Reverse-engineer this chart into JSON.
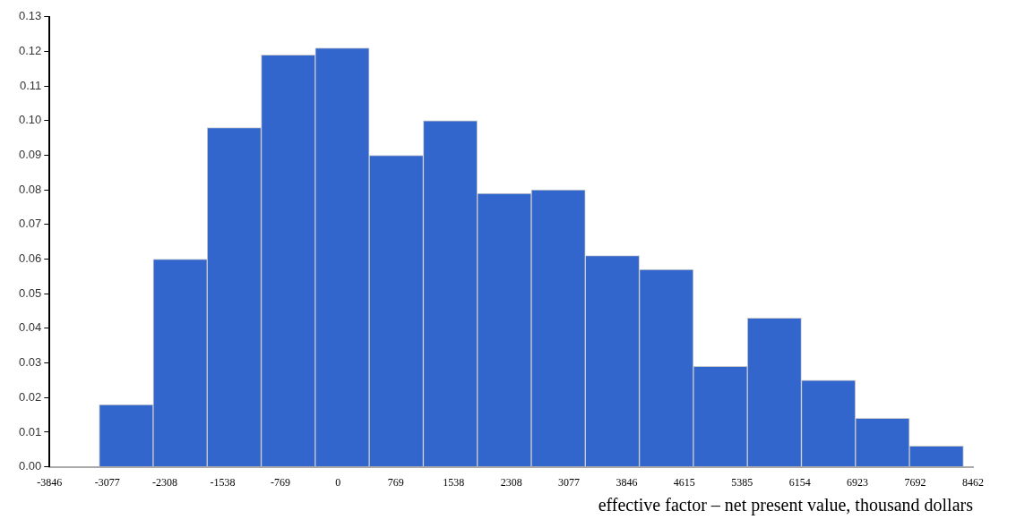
{
  "chart_data": {
    "type": "histogram",
    "xlabel": "effective factor – net present value, thousand dollars",
    "bins": [
      -3185,
      -2465,
      -1745,
      -1025,
      -305,
      415,
      1135,
      1855,
      2575,
      3295,
      4015,
      4735,
      5455,
      6175,
      6895,
      7615,
      8335
    ],
    "values": [
      0.018,
      0.06,
      0.098,
      0.119,
      0.121,
      0.09,
      0.1,
      0.079,
      0.08,
      0.061,
      0.057,
      0.029,
      0.043,
      0.025,
      0.014,
      0.006
    ],
    "color": "#3366cc",
    "xlim": [
      -3846,
      8462
    ],
    "xticks": [
      -3846,
      -3077,
      -2308,
      -1538,
      -769,
      0,
      769,
      1538,
      2308,
      3077,
      3846,
      4615,
      5385,
      6154,
      6923,
      7692,
      8462
    ],
    "ylim": [
      0,
      0.13
    ],
    "yticks": [
      {
        "value": 0,
        "label": "0.00"
      },
      {
        "value": 0.01,
        "label": "0.01"
      },
      {
        "value": 0.02,
        "label": "0.02"
      },
      {
        "value": 0.03,
        "label": "0.03"
      },
      {
        "value": 0.04,
        "label": "0.04"
      },
      {
        "value": 0.05,
        "label": "0.05"
      },
      {
        "value": 0.06,
        "label": "0.06"
      },
      {
        "value": 0.07,
        "label": "0.07"
      },
      {
        "value": 0.08,
        "label": "0.08"
      },
      {
        "value": 0.09,
        "label": "0.09"
      },
      {
        "value": 0.1,
        "label": "0.10"
      },
      {
        "value": 0.11,
        "label": "0.11"
      },
      {
        "value": 0.12,
        "label": "0.12"
      },
      {
        "value": 0.13,
        "label": "0.13"
      }
    ],
    "grid": false,
    "legend": false
  }
}
